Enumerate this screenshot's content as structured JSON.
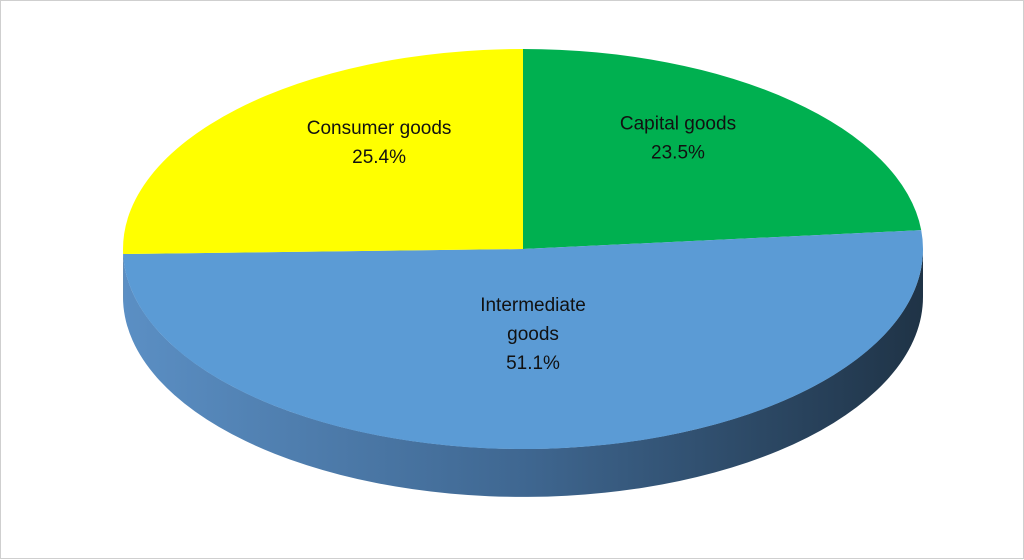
{
  "chart_data": {
    "type": "pie",
    "style": "3d",
    "title": "",
    "slices": [
      {
        "key": "capital",
        "name": "Capital goods",
        "value": 23.5,
        "label": "23.5%",
        "color": "#00b050"
      },
      {
        "key": "intermediate",
        "name": "Intermediate goods",
        "name_lines": [
          "Intermediate",
          "goods"
        ],
        "value": 51.1,
        "label": "51.1%",
        "color": "#5b9bd5"
      },
      {
        "key": "consumer",
        "name": "Consumer  goods",
        "value": 25.4,
        "label": "25.4%",
        "color": "#ffff00"
      }
    ],
    "legend": "none",
    "data_labels": "category and percentage inside slices"
  }
}
